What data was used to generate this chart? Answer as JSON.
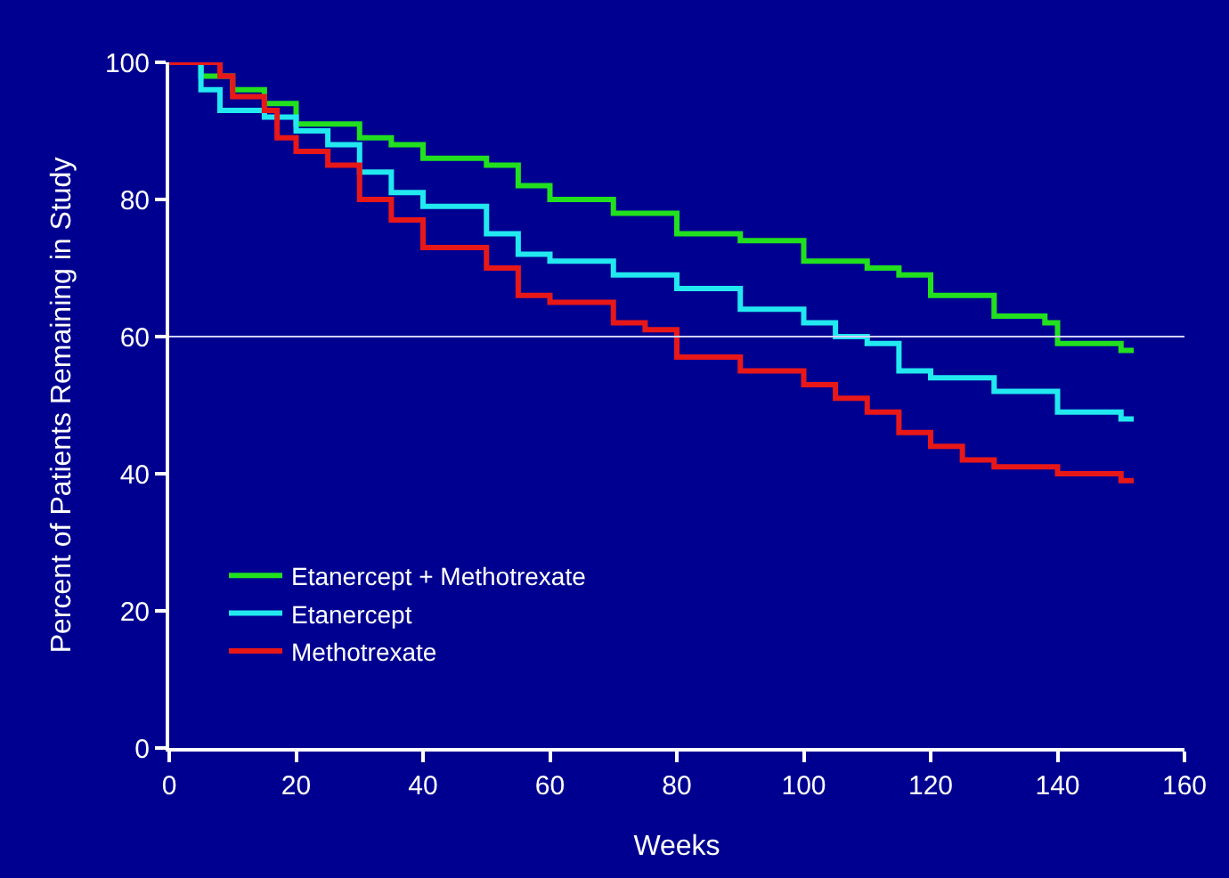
{
  "chart_data": {
    "type": "step",
    "xlabel": "Weeks",
    "ylabel": "Percent of Patients Remaining in Study",
    "xlim": [
      0,
      160
    ],
    "xticks": [
      0,
      20,
      40,
      60,
      80,
      100,
      120,
      140,
      160
    ],
    "ylim": [
      0,
      100
    ],
    "yticks": [
      0,
      20,
      40,
      60,
      80,
      100
    ],
    "grid": false,
    "legend": "bottom left",
    "marker": "none",
    "line_style": "solid",
    "ref_lines": [
      {
        "axis": "y",
        "value": 60,
        "label": null,
        "color": "#d0d0ff"
      }
    ],
    "series": [
      {
        "name": "Etanercept + Methotrexate",
        "color": "#22e01e",
        "x": [
          0,
          5,
          10,
          15,
          20,
          30,
          35,
          40,
          50,
          55,
          60,
          70,
          80,
          90,
          100,
          110,
          115,
          120,
          130,
          138,
          140,
          145,
          150,
          152
        ],
        "values": [
          100,
          98,
          96,
          94,
          91,
          89,
          88,
          86,
          85,
          82,
          80,
          78,
          75,
          74,
          71,
          70,
          69,
          66,
          63,
          62,
          59,
          59,
          58,
          58
        ]
      },
      {
        "name": "Etanercept",
        "color": "#22e8f0",
        "x": [
          0,
          5,
          8,
          15,
          20,
          25,
          30,
          35,
          40,
          50,
          55,
          60,
          70,
          80,
          90,
          100,
          105,
          110,
          115,
          120,
          130,
          140,
          150,
          152
        ],
        "values": [
          100,
          96,
          93,
          92,
          90,
          88,
          84,
          81,
          79,
          75,
          72,
          71,
          69,
          67,
          64,
          62,
          60,
          59,
          55,
          54,
          52,
          49,
          48,
          48
        ]
      },
      {
        "name": "Methotrexate",
        "color": "#e81818",
        "x": [
          0,
          8,
          10,
          15,
          17,
          20,
          25,
          30,
          35,
          40,
          50,
          55,
          60,
          70,
          75,
          80,
          90,
          100,
          105,
          110,
          115,
          120,
          125,
          130,
          140,
          150,
          152
        ],
        "values": [
          100,
          98,
          95,
          93,
          89,
          87,
          85,
          80,
          77,
          73,
          70,
          66,
          65,
          62,
          61,
          57,
          55,
          53,
          51,
          49,
          46,
          44,
          42,
          41,
          40,
          39,
          39
        ]
      }
    ]
  }
}
